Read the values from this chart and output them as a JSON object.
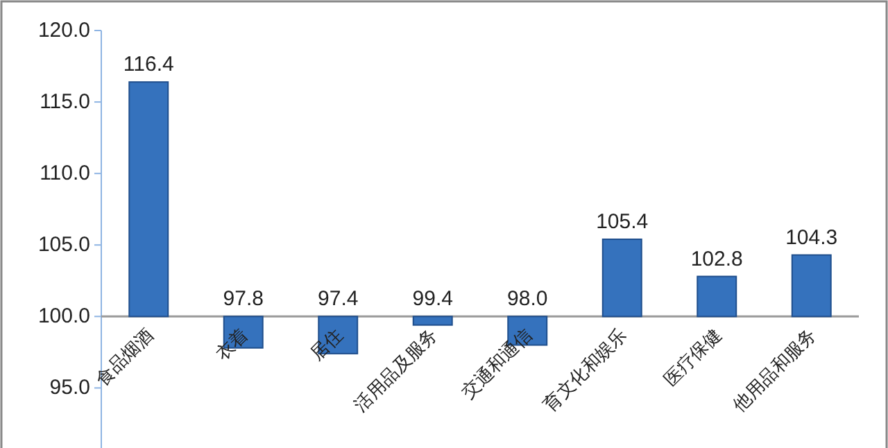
{
  "chart_data": {
    "type": "bar",
    "categories": [
      "食品烟酒",
      "衣着",
      "居住",
      "活用品及服务",
      "交通和通信",
      "育文化和娱乐",
      "医疗保健",
      "他用品和服务"
    ],
    "base": [
      100,
      100,
      100,
      100,
      100,
      100,
      100,
      100
    ],
    "values": [
      16.4,
      -2.2,
      -2.6,
      -0.6,
      -2.0,
      5.4,
      2.8,
      4.3
    ],
    "value_labels": [
      "116.4",
      "97.8",
      "97.4",
      "99.4",
      "98.0",
      "105.4",
      "102.8",
      "104.3"
    ],
    "color": "#3572bd",
    "ylim": [
      90.8,
      120
    ],
    "yticks": [
      {
        "value": 95,
        "label": "95.0"
      },
      {
        "value": 100,
        "label": "100.0"
      },
      {
        "value": 105,
        "label": "105.0"
      },
      {
        "value": 110,
        "label": "110.0"
      },
      {
        "value": 115,
        "label": "115.0"
      },
      {
        "value": 120,
        "label": "120.0"
      }
    ]
  }
}
